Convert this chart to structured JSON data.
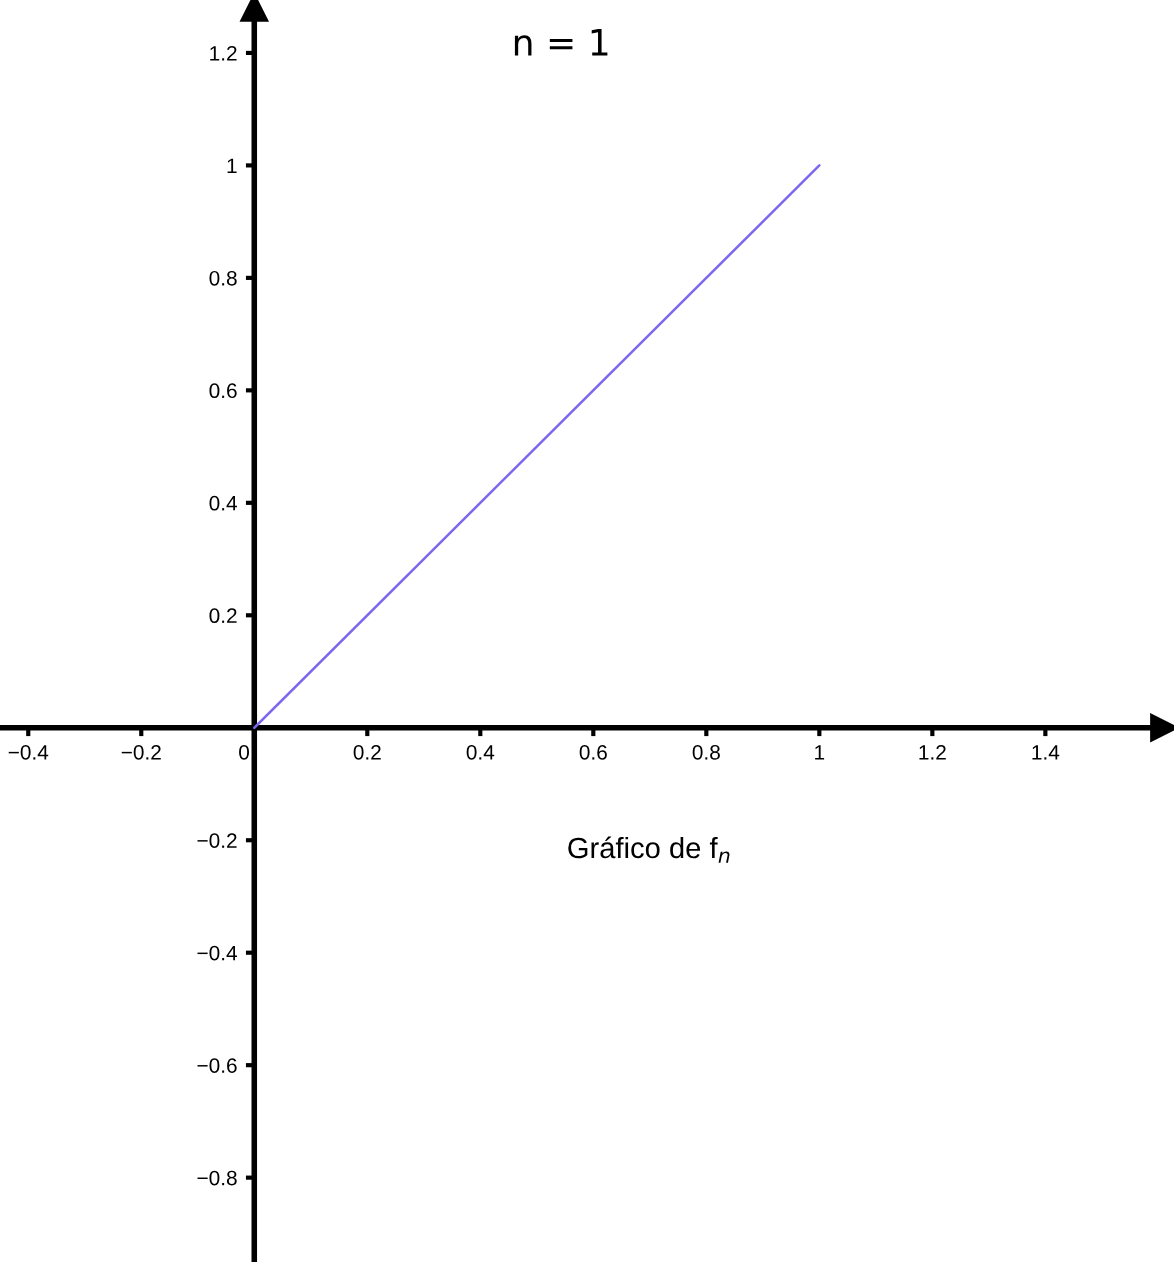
{
  "chart_data": {
    "type": "line",
    "title": "n = 1",
    "annotations": [
      "Gráfico de f$_{n}$"
    ],
    "series": [
      {
        "color": "#7b68ee",
        "x": [
          0,
          1
        ],
        "values": [
          0,
          1
        ]
      }
    ],
    "xlim": [
      -0.45,
      1.61
    ],
    "ylim": [
      -0.95,
      1.28
    ],
    "xticks": [
      {
        "value": -0.4,
        "label": "−0.4"
      },
      {
        "value": -0.2,
        "label": "−0.2"
      },
      0,
      0.2,
      0.4,
      0.6,
      0.8,
      1,
      1.2,
      1.4
    ],
    "yticks": [
      {
        "value": -0.8,
        "label": "−0.8"
      },
      {
        "value": -0.6,
        "label": "−0.6"
      },
      {
        "value": -0.4,
        "label": "−0.4"
      },
      {
        "value": -0.2,
        "label": "−0.2"
      },
      0.2,
      0.4,
      0.6,
      0.8,
      1,
      1.2
    ]
  }
}
